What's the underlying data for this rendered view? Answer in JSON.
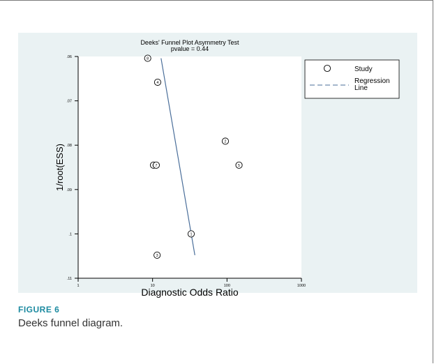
{
  "caption": {
    "label": "FIGURE 6",
    "text": "Deeks funnel diagram."
  },
  "chart_data": {
    "type": "scatter",
    "title": "Deeks' Funnel Plot Asymmetry Test",
    "subtitle": "pvalue =   0.44",
    "xlabel": "Diagnostic Odds Ratio",
    "ylabel": "1/root(ESS)",
    "x_scale": "log",
    "xlim": [
      1,
      1000
    ],
    "x_ticks": [
      1,
      10,
      100,
      1000
    ],
    "x_tick_labels": [
      "1",
      "10",
      "100",
      "1000"
    ],
    "ylim": [
      0.06,
      0.11
    ],
    "y_reversed": true,
    "y_ticks": [
      0.06,
      0.07,
      0.08,
      0.09,
      0.1,
      0.11
    ],
    "y_tick_labels": [
      ".06",
      ".07",
      ".08",
      ".09",
      ".1",
      ".11"
    ],
    "grid": false,
    "legend_position": "right",
    "legend": [
      {
        "label": "Study",
        "symbol": "circle"
      },
      {
        "label": "Regression Line",
        "symbol": "dashed-line"
      }
    ],
    "points": [
      {
        "label": "1",
        "x": 33,
        "y": 0.1
      },
      {
        "label": "2",
        "x": 95,
        "y": 0.0791
      },
      {
        "label": "3",
        "x": 11.5,
        "y": 0.1048
      },
      {
        "label": "4",
        "x": 11.7,
        "y": 0.0658
      },
      {
        "label": "5",
        "x": 145,
        "y": 0.0845
      },
      {
        "label": "6",
        "x": 10.3,
        "y": 0.0845
      },
      {
        "label": "7",
        "x": 11.2,
        "y": 0.0845
      },
      {
        "label": "8",
        "x": 8.6,
        "y": 0.0604
      }
    ],
    "regression_line": {
      "x": [
        13,
        37
      ],
      "y": [
        0.0604,
        0.1048
      ]
    },
    "colors": {
      "plot_bg": "#ffffff",
      "outer_bg": "#eaf2f3",
      "marker": "#000000",
      "regression": "#4a6e9a"
    }
  }
}
